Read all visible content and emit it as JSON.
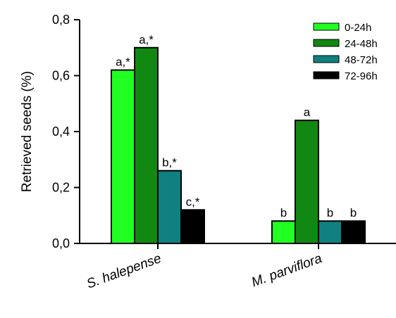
{
  "chart_data": {
    "type": "bar",
    "title": "",
    "xlabel": "",
    "ylabel": "Retrieved seeds (%)",
    "ylim": [
      0,
      0.8
    ],
    "yticks": [
      {
        "value": 0.0,
        "label": "0,0"
      },
      {
        "value": 0.2,
        "label": "0,2"
      },
      {
        "value": 0.4,
        "label": "0,4"
      },
      {
        "value": 0.6,
        "label": "0,6"
      },
      {
        "value": 0.8,
        "label": "0,8"
      }
    ],
    "categories": [
      "S. halepense",
      "M. parviflora"
    ],
    "series": [
      {
        "name": "0-24h",
        "color": "#22ff22",
        "values": [
          0.62,
          0.08
        ],
        "labels": [
          "a,*",
          "b"
        ]
      },
      {
        "name": "24-48h",
        "color": "#118811",
        "values": [
          0.7,
          0.44
        ],
        "labels": [
          "a,*",
          "a"
        ]
      },
      {
        "name": "48-72h",
        "color": "#108080",
        "values": [
          0.26,
          0.08
        ],
        "labels": [
          "b,*",
          "b"
        ]
      },
      {
        "name": "72-96h",
        "color": "#000000",
        "values": [
          0.12,
          0.08
        ],
        "labels": [
          "c,*",
          "b"
        ]
      }
    ],
    "legend_position": "top-right",
    "grid": false
  }
}
